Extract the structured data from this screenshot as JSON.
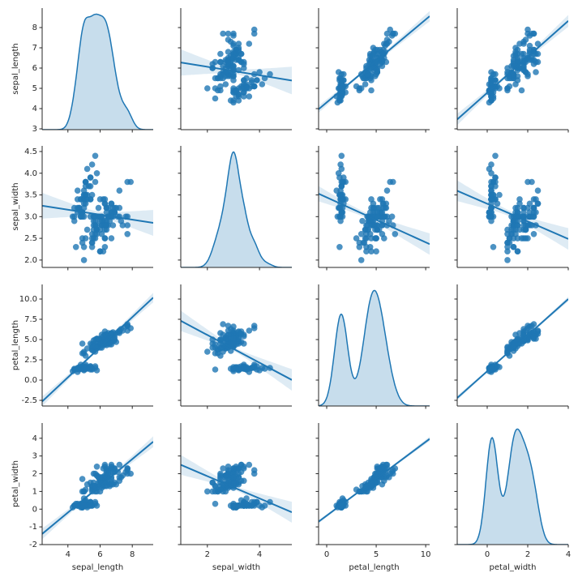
{
  "chart_data": {
    "type": "pairplot",
    "color": "#1f77b4",
    "series": [
      {
        "name": "sepal_length",
        "xlim": [
          2.4,
          9.3
        ],
        "xticks": [
          4,
          6,
          8
        ],
        "ylim": [
          2.96,
          8.96
        ],
        "yticks": [
          3,
          4,
          5,
          6,
          7,
          8
        ],
        "values": [
          5.1,
          4.9,
          4.7,
          4.6,
          5.0,
          5.4,
          4.6,
          5.0,
          4.4,
          4.9,
          5.4,
          4.8,
          4.8,
          4.3,
          5.8,
          5.7,
          5.4,
          5.1,
          5.7,
          5.1,
          5.4,
          5.1,
          4.6,
          5.1,
          4.8,
          5.0,
          5.0,
          5.2,
          5.2,
          4.7,
          4.8,
          5.4,
          5.2,
          5.5,
          4.9,
          5.0,
          5.5,
          4.9,
          4.4,
          5.1,
          5.0,
          4.5,
          4.4,
          5.0,
          5.1,
          4.8,
          5.1,
          4.6,
          5.3,
          5.0,
          7.0,
          6.4,
          6.9,
          5.5,
          6.5,
          5.7,
          6.3,
          4.9,
          6.6,
          5.2,
          5.0,
          5.9,
          6.0,
          6.1,
          5.6,
          6.7,
          5.6,
          5.8,
          6.2,
          5.6,
          5.9,
          6.1,
          6.3,
          6.1,
          6.4,
          6.6,
          6.8,
          6.7,
          6.0,
          5.7,
          5.5,
          5.5,
          5.8,
          6.0,
          5.4,
          6.0,
          6.7,
          6.3,
          5.6,
          5.5,
          5.5,
          6.1,
          5.8,
          5.0,
          5.6,
          5.7,
          5.7,
          6.2,
          5.1,
          5.7,
          6.3,
          5.8,
          7.1,
          6.3,
          6.5,
          7.6,
          4.9,
          7.3,
          6.7,
          7.2,
          6.5,
          6.4,
          6.8,
          5.7,
          5.8,
          6.4,
          6.5,
          7.7,
          7.7,
          6.0,
          6.9,
          5.6,
          7.7,
          6.3,
          6.7,
          7.2,
          6.2,
          6.1,
          6.4,
          7.2,
          7.4,
          7.9,
          6.4,
          6.3,
          6.1,
          7.7,
          6.3,
          6.4,
          6.0,
          6.9,
          6.7,
          6.9,
          5.8,
          6.8,
          6.7,
          6.7,
          6.3,
          6.5,
          6.2,
          5.9
        ]
      },
      {
        "name": "sepal_width",
        "xlim": [
          0.98,
          5.24
        ],
        "xticks": [
          2,
          4
        ],
        "ylim": [
          1.83,
          4.63
        ],
        "yticks": [
          {
            "value": 2,
            "label": "2.0"
          },
          2.5,
          {
            "value": 3,
            "label": "3.0"
          },
          3.5,
          {
            "value": 4,
            "label": "4.0"
          },
          4.5
        ],
        "values": [
          3.5,
          3.0,
          3.2,
          3.1,
          3.6,
          3.9,
          3.4,
          3.4,
          2.9,
          3.1,
          3.7,
          3.4,
          3.0,
          3.0,
          4.0,
          4.4,
          3.9,
          3.5,
          3.8,
          3.8,
          3.4,
          3.7,
          3.6,
          3.3,
          3.4,
          3.0,
          3.4,
          3.5,
          3.4,
          3.2,
          3.1,
          3.4,
          4.1,
          4.2,
          3.1,
          3.2,
          3.5,
          3.1,
          3.0,
          3.4,
          3.5,
          2.3,
          3.2,
          3.5,
          3.8,
          3.0,
          3.8,
          3.2,
          3.7,
          3.3,
          3.2,
          3.2,
          3.1,
          2.3,
          2.8,
          2.8,
          3.3,
          2.4,
          2.9,
          2.7,
          2.0,
          3.0,
          2.2,
          2.9,
          2.9,
          3.1,
          3.0,
          2.7,
          2.2,
          2.5,
          3.2,
          2.8,
          2.5,
          2.8,
          2.9,
          3.0,
          2.8,
          3.0,
          2.9,
          2.6,
          2.4,
          2.4,
          2.7,
          2.7,
          3.0,
          3.4,
          3.1,
          2.3,
          3.0,
          2.5,
          2.6,
          3.0,
          2.6,
          2.3,
          2.7,
          3.0,
          2.9,
          2.9,
          2.5,
          2.8,
          3.3,
          2.7,
          3.0,
          2.9,
          3.0,
          3.0,
          2.5,
          2.9,
          2.5,
          3.6,
          3.2,
          2.7,
          3.0,
          2.5,
          2.8,
          3.2,
          3.0,
          3.8,
          2.6,
          2.2,
          3.2,
          2.8,
          2.8,
          2.7,
          3.3,
          3.2,
          2.8,
          3.0,
          2.8,
          3.0,
          2.8,
          3.8,
          2.8,
          2.8,
          2.6,
          3.0,
          3.4,
          3.1,
          3.0,
          3.1,
          3.1,
          3.1,
          2.7,
          3.2,
          3.3,
          3.0,
          2.5,
          3.0,
          3.4,
          3.0
        ]
      },
      {
        "name": "petal_length",
        "xlim": [
          -0.82,
          10.4
        ],
        "xticks": [
          0,
          5,
          10
        ],
        "ylim": [
          -3.2,
          11.8
        ],
        "yticks": [
          -2.5,
          {
            "value": 0,
            "label": "0.0"
          },
          2.5,
          {
            "value": 5,
            "label": "5.0"
          },
          7.5,
          {
            "value": 10,
            "label": "10.0"
          }
        ],
        "values": [
          1.4,
          1.4,
          1.3,
          1.5,
          1.4,
          1.7,
          1.4,
          1.5,
          1.4,
          1.5,
          1.5,
          1.6,
          1.4,
          1.1,
          1.2,
          1.5,
          1.3,
          1.4,
          1.7,
          1.5,
          1.7,
          1.5,
          1.0,
          1.7,
          1.9,
          1.6,
          1.6,
          1.5,
          1.4,
          1.6,
          1.6,
          1.5,
          1.5,
          1.4,
          1.5,
          1.2,
          1.3,
          1.5,
          1.3,
          1.5,
          1.3,
          1.3,
          1.3,
          1.6,
          1.9,
          1.4,
          1.6,
          1.4,
          1.5,
          1.4,
          4.7,
          4.5,
          4.9,
          4.0,
          4.6,
          4.5,
          4.7,
          3.3,
          4.6,
          3.9,
          3.5,
          4.2,
          4.0,
          4.7,
          3.6,
          4.4,
          4.5,
          4.1,
          4.5,
          3.9,
          4.8,
          4.0,
          4.9,
          4.7,
          4.3,
          4.4,
          4.8,
          5.0,
          4.5,
          3.5,
          3.8,
          3.7,
          3.9,
          5.1,
          4.5,
          4.5,
          4.7,
          4.4,
          4.1,
          4.0,
          4.4,
          4.6,
          4.0,
          3.3,
          4.2,
          4.2,
          4.2,
          4.3,
          3.0,
          4.1,
          6.0,
          5.1,
          5.9,
          5.6,
          5.8,
          6.6,
          4.5,
          6.3,
          5.8,
          6.1,
          5.1,
          5.3,
          5.5,
          5.0,
          5.1,
          5.3,
          5.5,
          6.7,
          6.9,
          5.0,
          5.7,
          4.9,
          6.7,
          4.9,
          5.7,
          6.0,
          4.8,
          4.9,
          5.6,
          5.8,
          6.1,
          6.4,
          5.6,
          5.1,
          5.6,
          6.1,
          5.6,
          5.5,
          4.8,
          5.4,
          5.6,
          5.1,
          5.1,
          5.9,
          5.7,
          5.2,
          5.0,
          5.2,
          5.4,
          5.1
        ]
      },
      {
        "name": "petal_width",
        "xlim": [
          -1.48,
          4.0
        ],
        "xticks": [
          0,
          2,
          4
        ],
        "ylim": [
          -2,
          4.86
        ],
        "yticks": [
          -2,
          -1,
          0,
          1,
          2,
          3,
          4
        ],
        "values": [
          0.2,
          0.2,
          0.2,
          0.2,
          0.2,
          0.4,
          0.3,
          0.2,
          0.2,
          0.1,
          0.2,
          0.2,
          0.1,
          0.1,
          0.2,
          0.4,
          0.4,
          0.3,
          0.3,
          0.3,
          0.2,
          0.4,
          0.2,
          0.5,
          0.2,
          0.2,
          0.4,
          0.2,
          0.2,
          0.2,
          0.2,
          0.4,
          0.1,
          0.2,
          0.1,
          0.2,
          0.2,
          0.1,
          0.2,
          0.2,
          0.3,
          0.3,
          0.2,
          0.6,
          0.4,
          0.3,
          0.2,
          0.2,
          0.2,
          0.2,
          1.4,
          1.5,
          1.5,
          1.3,
          1.5,
          1.3,
          1.6,
          1.0,
          1.3,
          1.4,
          1.0,
          1.5,
          1.0,
          1.4,
          1.3,
          1.4,
          1.5,
          1.0,
          1.5,
          1.1,
          1.8,
          1.3,
          1.5,
          1.2,
          1.3,
          1.4,
          1.4,
          1.7,
          1.5,
          1.0,
          1.1,
          1.0,
          1.2,
          1.6,
          1.5,
          1.6,
          1.5,
          1.3,
          1.3,
          1.3,
          1.2,
          1.4,
          1.2,
          1.0,
          1.3,
          1.2,
          1.3,
          1.3,
          1.1,
          1.3,
          2.5,
          1.9,
          2.1,
          1.8,
          2.2,
          2.1,
          1.7,
          1.8,
          1.8,
          2.5,
          2.0,
          1.9,
          2.1,
          2.0,
          2.4,
          2.3,
          1.8,
          2.2,
          2.3,
          1.5,
          2.3,
          2.0,
          2.0,
          1.8,
          2.1,
          1.8,
          1.8,
          1.8,
          2.1,
          1.6,
          1.9,
          2.0,
          2.2,
          1.5,
          1.4,
          2.3,
          2.4,
          1.8,
          1.8,
          2.1,
          2.4,
          2.3,
          1.9,
          2.3,
          2.5,
          2.3,
          1.9,
          2.0,
          2.3,
          1.8
        ]
      }
    ]
  }
}
